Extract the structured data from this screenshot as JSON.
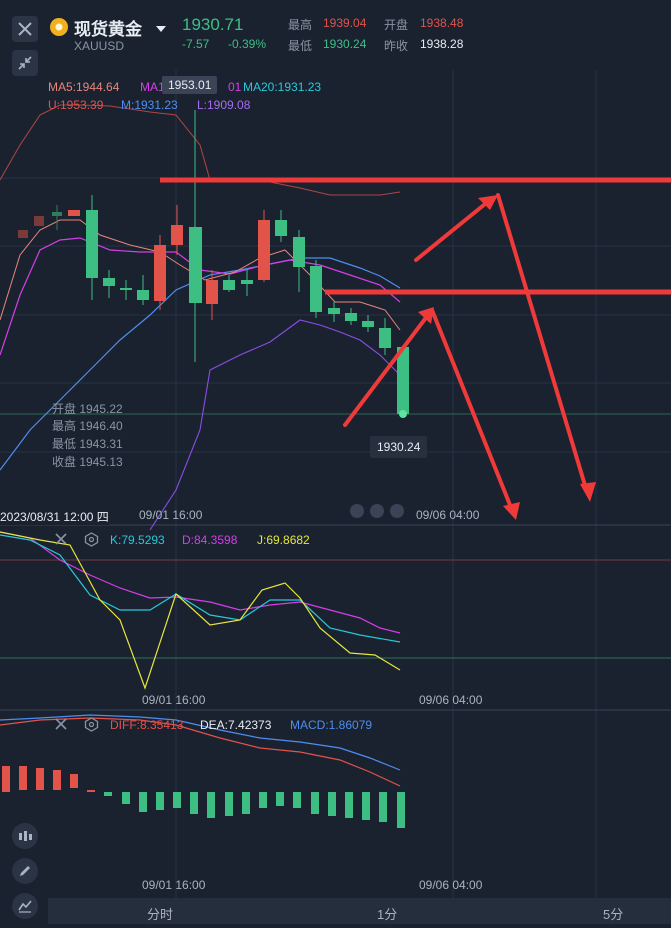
{
  "header": {
    "title": "现货黄金",
    "symbol": "XAUUSD",
    "last_price": "1930.71",
    "change": "-7.57",
    "change_pct": "-0.39%",
    "high_label": "最高",
    "high_value": "1939.04",
    "open_label": "开盘",
    "open_value": "1938.48",
    "low_label": "最低",
    "low_value": "1930.24",
    "prev_close_label": "昨收",
    "prev_close_value": "1938.28"
  },
  "indicators": {
    "ma5": "MA5:1944.64",
    "ma10": "MA1",
    "ma10_tail": "01",
    "ma20": "MA20:1931.23",
    "crosshair_price": "1953.01",
    "boll_u": "U:1953.39",
    "boll_m": "M:1931.23",
    "boll_l": "L:1909.08"
  },
  "ohlc_box": {
    "open": "开盘 1945.22",
    "high": "最高 1946.40",
    "low": "最低 1943.31",
    "close": "收盘 1945.13"
  },
  "main_chart": {
    "last_low_tag": "1930.24",
    "crosshair_date": "2023/08/31 12:00 四",
    "time_tick_1": "09/01 16:00",
    "time_tick_2": "09/06 04:00"
  },
  "kdj": {
    "k": "K:79.5293",
    "d": "D:84.3598",
    "j": "J:69.8682",
    "time_tick_1": "09/01 16:00",
    "time_tick_2": "09/06 04:00"
  },
  "macd": {
    "diff": "DIFF:8.35413",
    "dea": "DEA:7.42373",
    "macd": "MACD:1.86079",
    "time_tick_1": "09/01 16:00",
    "time_tick_2": "09/06 04:00"
  },
  "tabs": [
    "分时",
    "1分",
    "5分"
  ],
  "icons": {
    "close": "close-icon",
    "collapse": "collapse-icon",
    "dropdown": "caret-down-icon",
    "candle_type": "candlestick-icon",
    "draw": "pencil-icon",
    "indicator": "indicator-icon"
  },
  "colors": {
    "up": "#e2534a",
    "down": "#3dbf84",
    "background": "#1a2230",
    "annotation": "#f03a3a"
  }
}
